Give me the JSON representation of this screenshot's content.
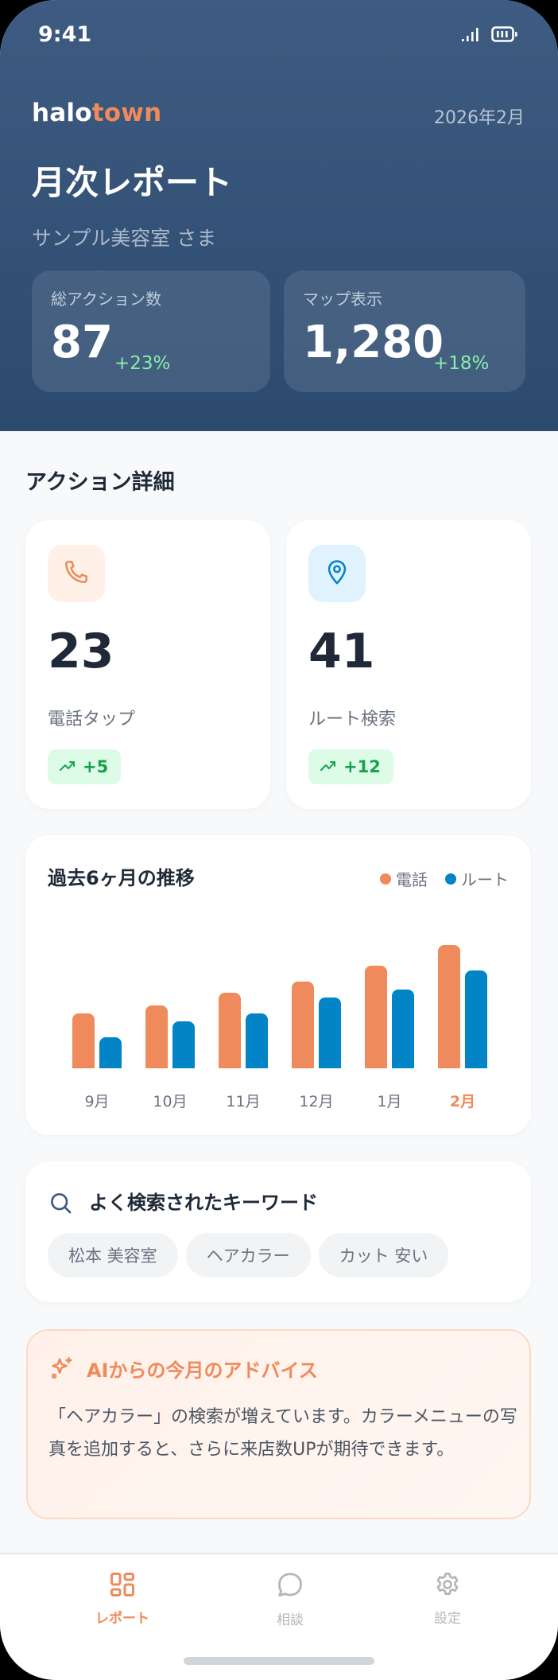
{
  "status_bar": {
    "time": "9:41",
    "icons": [
      "signal-icon",
      "battery-icon"
    ]
  },
  "header": {
    "logo_part1": "halo",
    "logo_part2": "town",
    "date": "2026年2月",
    "title": "月次レポート",
    "subtitle": "サンプル美容室 さま",
    "stats": [
      {
        "label": "総アクション数",
        "value": "87",
        "delta": "+23%"
      },
      {
        "label": "マップ表示",
        "value": "1,280",
        "delta": "+18%"
      }
    ]
  },
  "actions": {
    "section_title": "アクション詳細",
    "cards": [
      {
        "icon": "phone-icon",
        "value": "23",
        "label": "電話タップ",
        "delta": "+5"
      },
      {
        "icon": "map-pin-icon",
        "value": "41",
        "label": "ルート検索",
        "delta": "+12"
      }
    ]
  },
  "chart": {
    "title": "過去6ヶ月の推移",
    "legend": [
      {
        "label": "電話",
        "color": "#ee8a5b"
      },
      {
        "label": "ルート",
        "color": "#0284c7"
      }
    ],
    "months": [
      "9月",
      "10月",
      "11月",
      "12月",
      "1月",
      "2月"
    ],
    "current_month": "2月"
  },
  "chart_data": {
    "type": "bar",
    "title": "過去6ヶ月の推移",
    "categories": [
      "9月",
      "10月",
      "11月",
      "12月",
      "1月",
      "2月"
    ],
    "series": [
      {
        "name": "電話",
        "color": "#ee8a5b",
        "values": [
          69,
          79,
          95,
          109,
          129,
          155
        ]
      },
      {
        "name": "ルート",
        "color": "#0284c7",
        "values": [
          39,
          59,
          69,
          89,
          99,
          123
        ]
      }
    ],
    "xlabel": "",
    "ylabel": "",
    "ylim": [
      0,
      160
    ],
    "grid": false,
    "legend_position": "top-right",
    "note": "values are relative bar heights in pixels; no y-axis shown"
  },
  "keywords": {
    "title": "よく検索されたキーワード",
    "items": [
      "松本 美容室",
      "ヘアカラー",
      "カット 安い"
    ]
  },
  "advice": {
    "title": "AIからの今月のアドバイス",
    "text": "「ヘアカラー」の検索が増えています。カラーメニューの写真を追加すると、さらに来店数UPが期待できます。"
  },
  "nav": {
    "items": [
      {
        "label": "レポート",
        "icon": "grid-icon",
        "active": true
      },
      {
        "label": "相談",
        "icon": "chat-bubble-icon",
        "active": false
      },
      {
        "label": "設定",
        "icon": "gear-icon",
        "active": false
      }
    ]
  },
  "colors": {
    "accent": "#ef8a5a",
    "header_top": "#3e5b81",
    "header_bottom": "#2c4a6e",
    "route_blue": "#0284c7",
    "positive_green": "#16a34a"
  }
}
